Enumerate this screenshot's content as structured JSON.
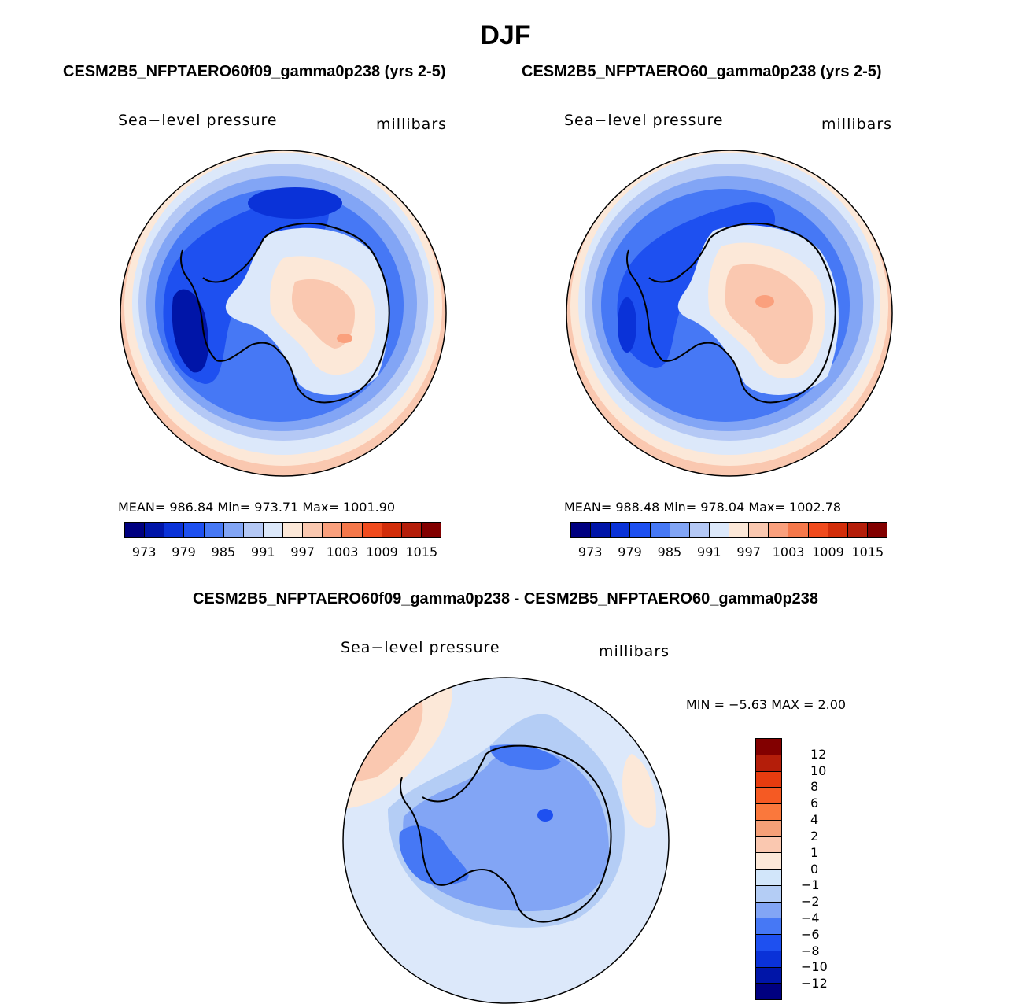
{
  "figure": {
    "season": "DJF",
    "case1_title": "CESM2B5_NFPTAERO60f09_gamma0p238 (yrs 2-5)",
    "case2_title": "CESM2B5_NFPTAERO60_gamma0p238 (yrs 2-5)",
    "diff_title": "CESM2B5_NFPTAERO60f09_gamma0p238 - CESM2B5_NFPTAERO60_gamma0p238"
  },
  "panels": [
    {
      "variable": "Sea−level pressure",
      "units": "millibars",
      "stats": "MEAN= 986.84   Min= 973.71   Max= 1001.90",
      "mean": 986.84,
      "min": 973.71,
      "max": 1001.9
    },
    {
      "variable": "Sea−level pressure",
      "units": "millibars",
      "stats": "MEAN= 988.48   Min= 978.04   Max= 1002.78",
      "mean": 988.48,
      "min": 978.04,
      "max": 1002.78
    },
    {
      "variable": "Sea−level pressure",
      "units": "millibars",
      "stats": "MIN =   −5.63 MAX =     2.00",
      "min": -5.63,
      "max": 2.0
    }
  ],
  "colorbar_abs": {
    "colors": [
      "#000080",
      "#0015a8",
      "#0a32d8",
      "#1e50f0",
      "#4678f5",
      "#82a5f5",
      "#b4c8f5",
      "#dce8fa",
      "#fce8d8",
      "#fac8b0",
      "#faa07d",
      "#f5784b",
      "#f04b1e",
      "#d22d0a",
      "#b41e0a",
      "#820000"
    ],
    "tick_labels": [
      "973",
      "979",
      "985",
      "991",
      "997",
      "1003",
      "1009",
      "1015"
    ]
  },
  "colorbar_diff": {
    "colors": [
      "#820000",
      "#b41e0a",
      "#e63c0f",
      "#f55a23",
      "#fa783c",
      "#f5a078",
      "#fac8b0",
      "#fce8d8",
      "#d2e6fa",
      "#b4cdf5",
      "#82a5f5",
      "#4678f5",
      "#1e50f0",
      "#0a32d8",
      "#0015a8",
      "#000080"
    ],
    "tick_labels": [
      "12",
      "10",
      "8",
      "6",
      "4",
      "2",
      "1",
      "0",
      "−1",
      "−2",
      "−4",
      "−6",
      "−8",
      "−10",
      "−12"
    ]
  },
  "chart_data": [
    {
      "type": "heatmap",
      "title": "Sea−level pressure (DJF) CESM2B5_NFPTAERO60f09_gamma0p238 (yrs 2-5)",
      "units": "millibars",
      "levels": [
        973,
        976,
        979,
        982,
        985,
        988,
        991,
        994,
        997,
        1000,
        1003,
        1006,
        1009,
        1012,
        1015
      ],
      "mean": 986.84,
      "min": 973.71,
      "max": 1001.9
    },
    {
      "type": "heatmap",
      "title": "Sea−level pressure (DJF) CESM2B5_NFPTAERO60_gamma0p238 (yrs 2-5)",
      "units": "millibars",
      "levels": [
        973,
        976,
        979,
        982,
        985,
        988,
        991,
        994,
        997,
        1000,
        1003,
        1006,
        1009,
        1012,
        1015
      ],
      "mean": 988.48,
      "min": 978.04,
      "max": 1002.78
    },
    {
      "type": "heatmap",
      "title": "Sea−level pressure difference",
      "units": "millibars",
      "levels": [
        -12,
        -10,
        -8,
        -6,
        -4,
        -2,
        -1,
        0,
        1,
        2,
        4,
        6,
        8,
        10,
        12
      ],
      "min": -5.63,
      "max": 2.0
    }
  ]
}
